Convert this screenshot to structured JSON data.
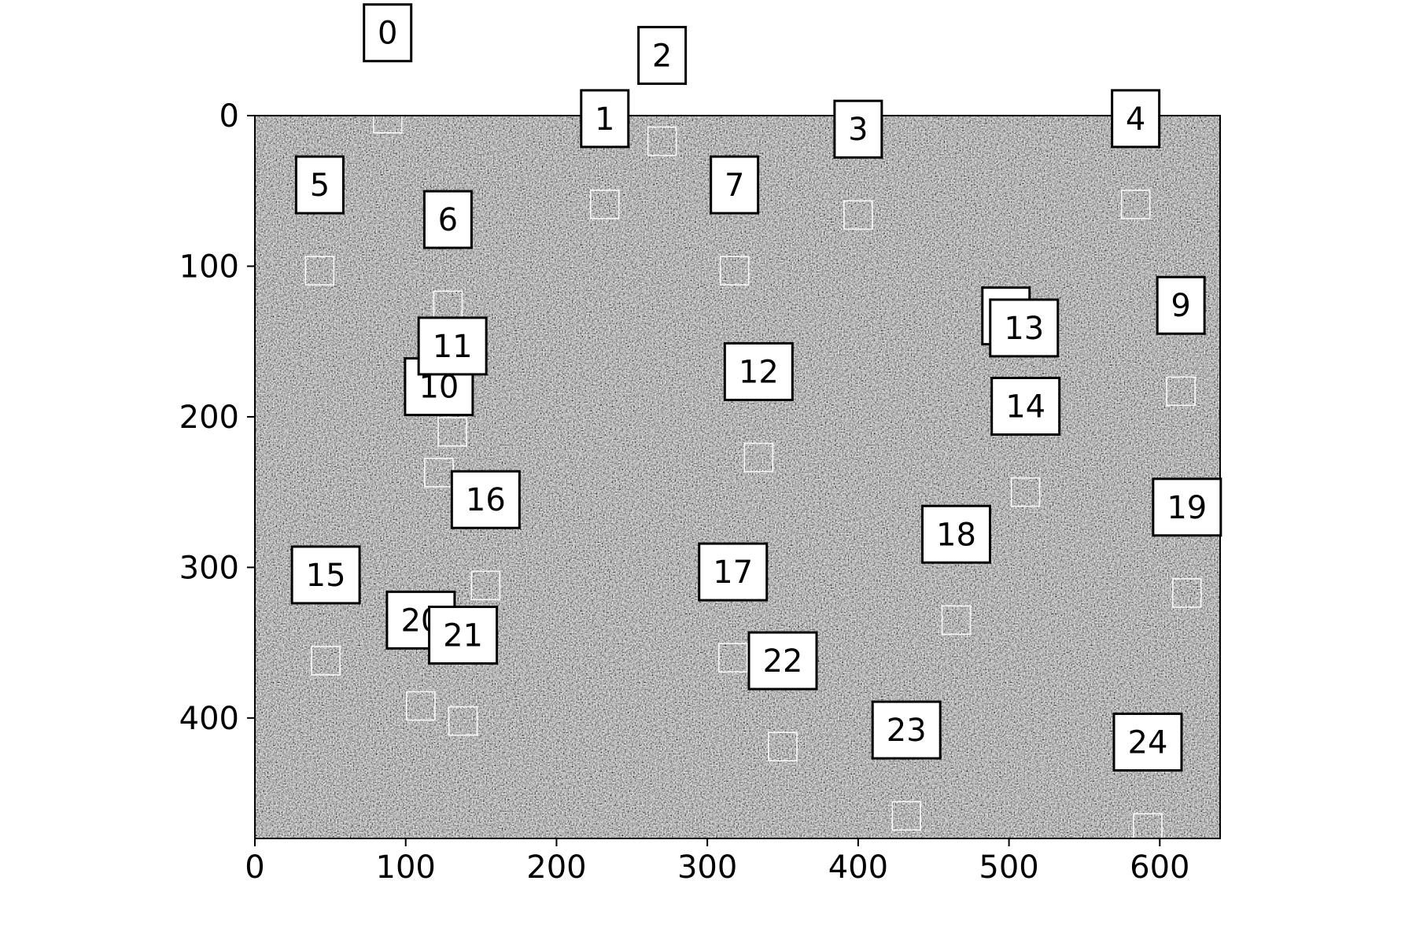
{
  "chart_data": {
    "type": "scatter",
    "title": "",
    "xlabel": "",
    "ylabel": "",
    "xlim": [
      0,
      640
    ],
    "ylim": [
      480,
      0
    ],
    "xticks": [
      0,
      100,
      200,
      300,
      400,
      500,
      600
    ],
    "yticks": [
      0,
      100,
      200,
      300,
      400
    ],
    "y_axis_inverted": true,
    "background": "grayscale noise image",
    "marker_shape": "hollow square",
    "marker_color": "#ffffff",
    "label_box_color": "#ffffff",
    "label_border_color": "#000000",
    "points": [
      {
        "label": "0",
        "x": 88,
        "y": 2,
        "label_x": 88,
        "label_y": -55
      },
      {
        "label": "1",
        "x": 232,
        "y": 59,
        "label_x": 232,
        "label_y": 2
      },
      {
        "label": "2",
        "x": 270,
        "y": 17,
        "label_x": 270,
        "label_y": -40
      },
      {
        "label": "3",
        "x": 400,
        "y": 66,
        "label_x": 400,
        "label_y": 9
      },
      {
        "label": "4",
        "x": 584,
        "y": 59,
        "label_x": 584,
        "label_y": 2
      },
      {
        "label": "5",
        "x": 43,
        "y": 103,
        "label_x": 43,
        "label_y": 46
      },
      {
        "label": "6",
        "x": 128,
        "y": 126,
        "label_x": 128,
        "label_y": 69
      },
      {
        "label": "7",
        "x": 318,
        "y": 103,
        "label_x": 318,
        "label_y": 46
      },
      {
        "label": "8",
        "x": 498,
        "y": 141,
        "label_x": 498,
        "label_y": 133
      },
      {
        "label": "9",
        "x": 614,
        "y": 183,
        "label_x": 614,
        "label_y": 126
      },
      {
        "label": "10",
        "x": 122,
        "y": 237,
        "label_x": 122,
        "label_y": 180
      },
      {
        "label": "11",
        "x": 131,
        "y": 210,
        "label_x": 131,
        "label_y": 153
      },
      {
        "label": "12",
        "x": 334,
        "y": 227,
        "label_x": 334,
        "label_y": 170
      },
      {
        "label": "13",
        "x": 510,
        "y": 141,
        "label_x": 510,
        "label_y": 141
      },
      {
        "label": "14",
        "x": 511,
        "y": 250,
        "label_x": 511,
        "label_y": 193
      },
      {
        "label": "15",
        "x": 47,
        "y": 362,
        "label_x": 47,
        "label_y": 305
      },
      {
        "label": "16",
        "x": 153,
        "y": 312,
        "label_x": 153,
        "label_y": 255
      },
      {
        "label": "17",
        "x": 317,
        "y": 360,
        "label_x": 317,
        "label_y": 303
      },
      {
        "label": "18",
        "x": 465,
        "y": 335,
        "label_x": 465,
        "label_y": 278
      },
      {
        "label": "19",
        "x": 618,
        "y": 317,
        "label_x": 618,
        "label_y": 260
      },
      {
        "label": "20",
        "x": 110,
        "y": 392,
        "label_x": 110,
        "label_y": 335
      },
      {
        "label": "21",
        "x": 138,
        "y": 402,
        "label_x": 138,
        "label_y": 345
      },
      {
        "label": "22",
        "x": 350,
        "y": 419,
        "label_x": 350,
        "label_y": 362
      },
      {
        "label": "23",
        "x": 432,
        "y": 465,
        "label_x": 432,
        "label_y": 408
      },
      {
        "label": "24",
        "x": 592,
        "y": 473,
        "label_x": 592,
        "label_y": 416
      }
    ]
  }
}
